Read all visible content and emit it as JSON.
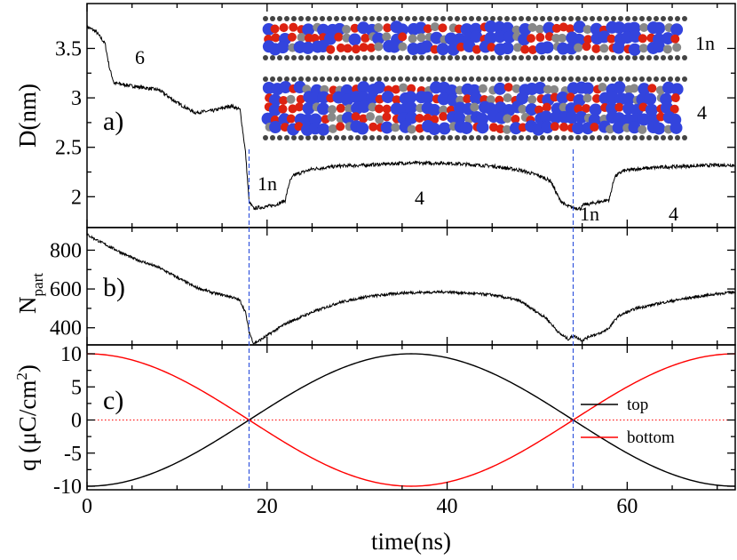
{
  "chart_data": [
    {
      "panel": "a)",
      "type": "line",
      "ylabel": "D(nm)",
      "xlim": [
        0,
        72
      ],
      "ylim": [
        1.8,
        3.8
      ],
      "yticks": [
        2,
        2.5,
        3,
        3.5
      ],
      "ytick_labels": [
        "2",
        "2.5",
        "3",
        "3.5"
      ],
      "annotations": [
        "6",
        "1n",
        "4",
        "1n",
        "4"
      ],
      "inset_labels": [
        "1n",
        "4"
      ],
      "series": [
        {
          "name": "D",
          "color": "#000000",
          "x": [
            0,
            1,
            2,
            2.5,
            3,
            5,
            8,
            10,
            12,
            14,
            16,
            17,
            17.6,
            18,
            18.5,
            19,
            20,
            21,
            22,
            22.5,
            23,
            25,
            28,
            31,
            35,
            40,
            45,
            48,
            50,
            51.5,
            52.5,
            53.2,
            54,
            54.8,
            55.2,
            56,
            57,
            58,
            58.6,
            59.5,
            61,
            64,
            67,
            70,
            72
          ],
          "values": [
            3.72,
            3.67,
            3.55,
            3.3,
            3.15,
            3.12,
            3.08,
            2.95,
            2.85,
            2.87,
            2.92,
            2.88,
            2.45,
            1.95,
            1.88,
            1.89,
            1.9,
            1.92,
            1.96,
            2.15,
            2.22,
            2.28,
            2.31,
            2.32,
            2.34,
            2.34,
            2.31,
            2.27,
            2.22,
            2.16,
            1.97,
            1.91,
            1.89,
            1.88,
            1.92,
            1.93,
            1.95,
            1.97,
            2.2,
            2.26,
            2.28,
            2.3,
            2.31,
            2.32,
            2.32
          ]
        }
      ]
    },
    {
      "panel": "b)",
      "type": "line",
      "ylabel": "N",
      "ylabel_sub": "part",
      "xlim": [
        0,
        72
      ],
      "ylim": [
        280,
        920
      ],
      "yticks": [
        400,
        600,
        800
      ],
      "ytick_labels": [
        "400",
        "600",
        "800"
      ],
      "series": [
        {
          "name": "N_part",
          "color": "#000000",
          "x": [
            0,
            2,
            5,
            8,
            10,
            12,
            14,
            16,
            17,
            17.6,
            18,
            18.5,
            19,
            20,
            22,
            25,
            28,
            31,
            35,
            40,
            45,
            48,
            51,
            52.5,
            53.5,
            54,
            55,
            56,
            57,
            58,
            59,
            61,
            64,
            67,
            70,
            72
          ],
          "values": [
            880,
            830,
            760,
            710,
            660,
            610,
            580,
            560,
            540,
            480,
            380,
            320,
            330,
            360,
            420,
            480,
            530,
            560,
            580,
            585,
            570,
            540,
            450,
            370,
            340,
            360,
            335,
            360,
            370,
            400,
            460,
            500,
            530,
            555,
            575,
            585
          ]
        }
      ]
    },
    {
      "panel": "c)",
      "type": "line",
      "ylabel": "q (μC/cm",
      "ylabel_sup": "2",
      "ylabel_end": ")",
      "xlabel": "time(ns)",
      "xlim": [
        0,
        72
      ],
      "ylim": [
        -11,
        11
      ],
      "xticks": [
        0,
        20,
        40,
        60
      ],
      "xtick_labels": [
        "0",
        "20",
        "40",
        "60"
      ],
      "yticks": [
        -10,
        -5,
        0,
        5,
        10
      ],
      "ytick_labels": [
        "-10",
        "-5",
        "0",
        "5",
        "10"
      ],
      "amplitude": 10,
      "period_ns": 72,
      "zero_line_color": "#ff0000",
      "series": [
        {
          "name": "top",
          "color": "#000000",
          "formula": "-10*cos(2*pi*t/72)"
        },
        {
          "name": "bottom",
          "color": "#ff0000",
          "formula": "10*cos(2*pi*t/72)"
        }
      ],
      "legend": [
        "top",
        "bottom"
      ],
      "legend_position": "right"
    }
  ],
  "vertical_markers_ns": [
    18,
    54
  ],
  "marker_color": "#3355dd",
  "inset": {
    "description_free": true,
    "atom_colors": {
      "blue": "#3344dd",
      "red": "#dd2211",
      "gray": "#888888",
      "dark": "#444444"
    }
  }
}
